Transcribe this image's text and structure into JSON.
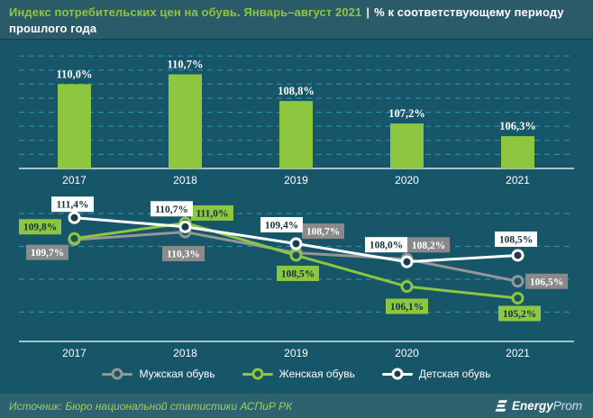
{
  "header": {
    "title_highlight": "Индекс потребительских цен на обувь. Январь–август 2021",
    "separator": "|",
    "title_rest": "% к соответствующему периоду прошлого года"
  },
  "colors": {
    "header_bg": "#2b5a69",
    "chart_bg": "#175569",
    "footer_bg": "#2d6270",
    "grid": "#2e93ae",
    "axis": "#d7e6ea",
    "accent_green": "#8dc63f",
    "gray": "#969696",
    "white": "#ffffff",
    "dark_text": "#13303e",
    "marker_dark_fill": "#1b3c4e"
  },
  "chart_data": [
    {
      "type": "bar",
      "title": "Индекс потребительских цен на обувь, % к соответствующему периоду прошлого года",
      "categories": [
        "2017",
        "2018",
        "2019",
        "2020",
        "2021"
      ],
      "values": [
        110.0,
        110.7,
        108.8,
        107.2,
        106.3
      ],
      "value_labels": [
        "110,0%",
        "110,7%",
        "108,8%",
        "107,2%",
        "106,3%"
      ],
      "ylim": [
        104,
        112
      ],
      "grid": "dashed-horizontal",
      "bar_color": "#8dc63f"
    },
    {
      "type": "line",
      "x": [
        "2017",
        "2018",
        "2019",
        "2020",
        "2021"
      ],
      "ylim": [
        104.5,
        112.5
      ],
      "grid": "dashed-horizontal",
      "legend_position": "bottom",
      "series": [
        {
          "name": "Мужская обувь",
          "color": "#969696",
          "marker_fill": "#175569",
          "label_bg": "#8a8a8a",
          "label_color": "#ffffff",
          "values": [
            109.7,
            110.3,
            108.7,
            108.2,
            106.5
          ],
          "labels": [
            "109,7%",
            "110,3%",
            "108,7%",
            "108,2%",
            "106,5%"
          ]
        },
        {
          "name": "Женская обувь",
          "color": "#8dc63f",
          "marker_fill": "#175569",
          "label_bg": "#8dc63f",
          "label_color": "#13303e",
          "values": [
            109.8,
            111.0,
            108.5,
            106.1,
            105.2
          ],
          "labels": [
            "109,8%",
            "111,0%",
            "108,5%",
            "106,1%",
            "105,2%"
          ]
        },
        {
          "name": "Детская обувь",
          "color": "#ffffff",
          "marker_fill": "#1b3c4e",
          "label_bg": "#ffffff",
          "label_color": "#13303e",
          "values": [
            111.4,
            110.7,
            109.4,
            108.0,
            108.5
          ],
          "labels": [
            "111,4%",
            "110,7%",
            "109,4%",
            "108,0%",
            "108,5%"
          ]
        }
      ]
    }
  ],
  "footer": {
    "source": "Источник: Бюро национальной статистики АСПиР РК",
    "logo_bold": "Energy",
    "logo_light": "Prom"
  }
}
